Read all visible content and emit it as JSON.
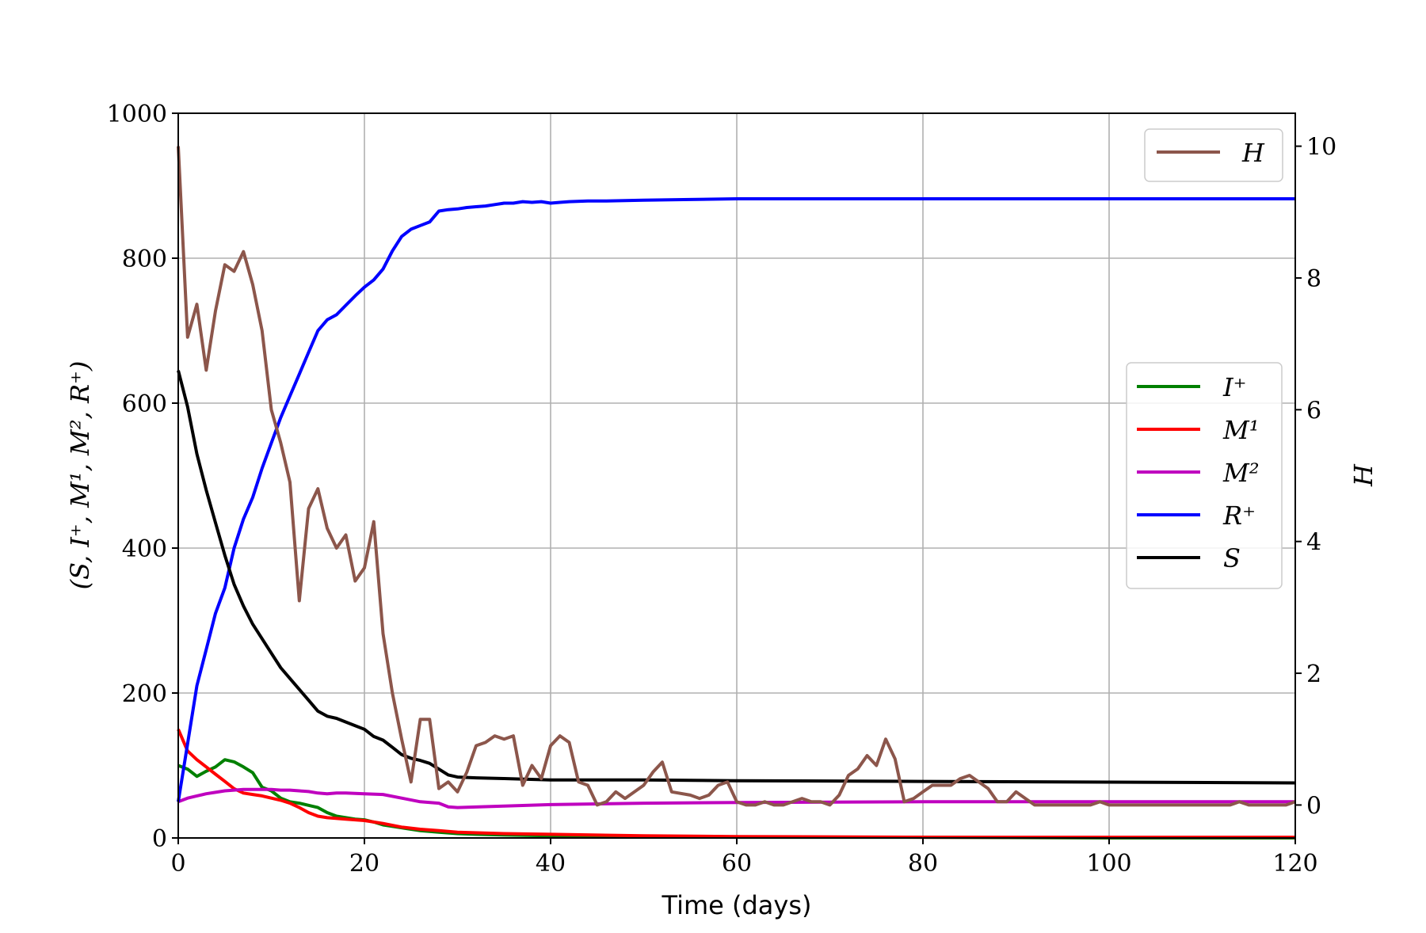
{
  "chart_data": {
    "type": "line",
    "xlabel": "Time (days)",
    "ylabel_left": "(S, I⁺, M¹, M², R⁺)",
    "ylabel_right": "H",
    "xlim": [
      0,
      120
    ],
    "ylim_left": [
      0,
      1000
    ],
    "ylim_right": [
      -0.5,
      10.5
    ],
    "xticks": [
      "0",
      "20",
      "40",
      "60",
      "80",
      "100",
      "120"
    ],
    "yticks_left": [
      "0",
      "200",
      "400",
      "600",
      "800",
      "1000"
    ],
    "yticks_right": [
      "0",
      "2",
      "4",
      "6",
      "8",
      "10"
    ],
    "grid": true,
    "legends": [
      {
        "placement": "top-right",
        "entries": [
          "H"
        ]
      },
      {
        "placement": "center-right",
        "entries": [
          "I⁺",
          "M¹",
          "M²",
          "R⁺",
          "S"
        ]
      }
    ],
    "series": [
      {
        "name": "H",
        "axis": "right",
        "color": "#8c564b",
        "x": [
          0,
          1,
          2,
          3,
          4,
          5,
          6,
          7,
          8,
          9,
          10,
          11,
          12,
          13,
          14,
          15,
          16,
          17,
          18,
          19,
          20,
          21,
          22,
          23,
          24,
          25,
          26,
          27,
          28,
          29,
          30,
          31,
          32,
          33,
          34,
          35,
          36,
          37,
          38,
          39,
          40,
          41,
          42,
          43,
          44,
          45,
          46,
          47,
          48,
          49,
          50,
          51,
          52,
          53,
          55,
          56,
          57,
          58,
          59,
          60,
          61,
          62,
          63,
          64,
          65,
          66,
          67,
          68,
          69,
          70,
          71,
          72,
          73,
          74,
          75,
          76,
          77,
          78,
          79,
          80,
          81,
          82,
          83,
          84,
          85,
          86,
          87,
          88,
          89,
          90,
          91,
          92,
          93,
          94,
          95,
          96,
          97,
          98,
          99,
          100,
          101,
          102,
          103,
          104,
          105,
          106,
          107,
          108,
          109,
          110,
          111,
          112,
          113,
          114,
          115,
          116,
          117,
          118,
          119,
          120
        ],
        "y": [
          10.0,
          7.1,
          7.6,
          6.6,
          7.5,
          8.2,
          8.1,
          8.4,
          7.9,
          7.2,
          6.0,
          5.5,
          4.9,
          3.1,
          4.5,
          4.8,
          4.2,
          3.9,
          4.1,
          3.4,
          3.6,
          4.3,
          2.6,
          1.7,
          1.0,
          0.35,
          1.3,
          1.3,
          0.25,
          0.35,
          0.2,
          0.5,
          0.9,
          0.95,
          1.05,
          1.0,
          1.05,
          0.3,
          0.6,
          0.4,
          0.9,
          1.05,
          0.95,
          0.35,
          0.3,
          0.0,
          0.05,
          0.2,
          0.1,
          0.2,
          0.3,
          0.5,
          0.65,
          0.2,
          0.15,
          0.1,
          0.15,
          0.3,
          0.35,
          0.05,
          0.0,
          0.0,
          0.05,
          0.0,
          0.0,
          0.05,
          0.1,
          0.05,
          0.05,
          0.0,
          0.15,
          0.45,
          0.55,
          0.75,
          0.6,
          1.0,
          0.7,
          0.05,
          0.1,
          0.2,
          0.3,
          0.3,
          0.3,
          0.4,
          0.45,
          0.35,
          0.25,
          0.05,
          0.05,
          0.2,
          0.1,
          0.0,
          0.0,
          0.0,
          0.0,
          0.0,
          0.0,
          0.0,
          0.05,
          0.0,
          0.0,
          0.0,
          0.0,
          0.0,
          0.0,
          0.0,
          0.0,
          0.0,
          0.0,
          0.0,
          0.0,
          0.0,
          0.0,
          0.05,
          0.0,
          0.0,
          0.0,
          0.0,
          0.0,
          0.05
        ]
      },
      {
        "name": "I⁺",
        "axis": "left",
        "color": "#008000",
        "x": [
          0,
          1,
          2,
          3,
          4,
          5,
          6,
          7,
          8,
          9,
          10,
          11,
          12,
          13,
          14,
          15,
          16,
          17,
          18,
          19,
          20,
          21,
          22,
          24,
          26,
          28,
          30,
          32,
          35,
          40,
          50,
          60,
          80,
          100,
          120
        ],
        "y": [
          100,
          95,
          85,
          92,
          98,
          108,
          105,
          98,
          90,
          70,
          65,
          55,
          50,
          48,
          45,
          42,
          35,
          30,
          28,
          26,
          25,
          22,
          18,
          14,
          10,
          8,
          6,
          5,
          4,
          3,
          2,
          1,
          1,
          0,
          0
        ]
      },
      {
        "name": "M¹",
        "axis": "left",
        "color": "#ff0000",
        "x": [
          0,
          1,
          2,
          3,
          4,
          5,
          6,
          7,
          8,
          9,
          10,
          11,
          12,
          13,
          14,
          15,
          16,
          18,
          20,
          22,
          24,
          26,
          28,
          30,
          35,
          40,
          50,
          60,
          80,
          100,
          120
        ],
        "y": [
          150,
          120,
          108,
          98,
          88,
          78,
          68,
          62,
          60,
          58,
          55,
          52,
          48,
          42,
          35,
          30,
          28,
          26,
          24,
          20,
          15,
          12,
          10,
          8,
          6,
          5,
          3,
          2,
          1,
          1,
          1
        ]
      },
      {
        "name": "M²",
        "axis": "left",
        "color": "#bf00bf",
        "x": [
          0,
          1,
          2,
          3,
          4,
          5,
          6,
          7,
          8,
          9,
          10,
          11,
          12,
          13,
          14,
          15,
          16,
          17,
          18,
          20,
          22,
          24,
          26,
          28,
          29,
          30,
          35,
          40,
          50,
          60,
          80,
          100,
          120
        ],
        "y": [
          50,
          55,
          58,
          61,
          63,
          65,
          66,
          67,
          67,
          67,
          67,
          66,
          66,
          65,
          64,
          62,
          61,
          62,
          62,
          61,
          60,
          55,
          50,
          48,
          43,
          42,
          44,
          46,
          48,
          49,
          50,
          50,
          50
        ]
      },
      {
        "name": "R⁺",
        "axis": "left",
        "color": "#0000ff",
        "x": [
          0,
          1,
          2,
          3,
          4,
          5,
          6,
          7,
          8,
          9,
          10,
          11,
          12,
          13,
          14,
          15,
          16,
          17,
          18,
          19,
          20,
          21,
          22,
          23,
          24,
          25,
          26,
          27,
          28,
          29,
          30,
          31,
          32,
          33,
          34,
          35,
          36,
          37,
          38,
          39,
          40,
          41,
          42,
          44,
          46,
          50,
          55,
          60,
          70,
          80,
          90,
          100,
          110,
          120
        ],
        "y": [
          50,
          130,
          210,
          260,
          310,
          345,
          400,
          440,
          470,
          510,
          545,
          580,
          610,
          640,
          670,
          700,
          715,
          722,
          735,
          748,
          760,
          770,
          785,
          810,
          830,
          840,
          845,
          850,
          865,
          867,
          868,
          870,
          871,
          872,
          874,
          876,
          876,
          878,
          877,
          878,
          876,
          877,
          878,
          879,
          879,
          880,
          881,
          882,
          882,
          882,
          882,
          882,
          882,
          882
        ]
      },
      {
        "name": "S",
        "axis": "left",
        "color": "#000000",
        "x": [
          0,
          1,
          2,
          3,
          4,
          5,
          6,
          7,
          8,
          9,
          10,
          11,
          12,
          13,
          14,
          15,
          16,
          17,
          18,
          19,
          20,
          21,
          22,
          23,
          24,
          25,
          26,
          27,
          28,
          29,
          30,
          32,
          35,
          40,
          50,
          60,
          80,
          100,
          120
        ],
        "y": [
          645,
          595,
          530,
          480,
          435,
          390,
          350,
          320,
          295,
          275,
          255,
          235,
          220,
          205,
          190,
          175,
          168,
          165,
          160,
          155,
          150,
          140,
          135,
          125,
          115,
          110,
          107,
          103,
          95,
          87,
          84,
          83,
          82,
          80,
          80,
          79,
          78,
          77,
          76
        ]
      }
    ]
  }
}
